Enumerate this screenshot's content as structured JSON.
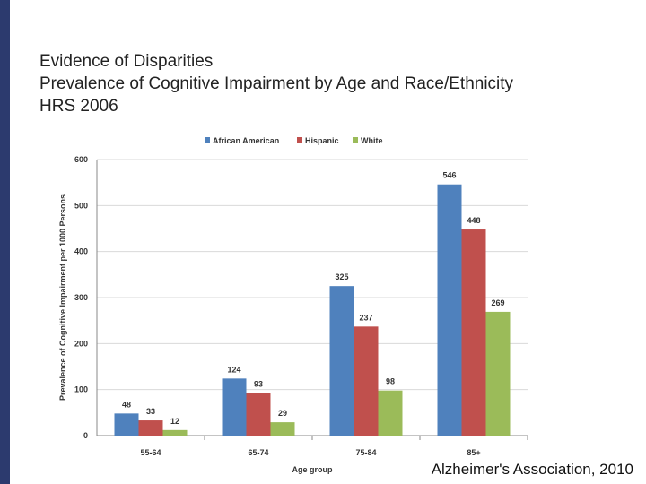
{
  "slide": {
    "title_line1": "Evidence of Disparities",
    "title_line2": "Prevalence of Cognitive Impairment by Age and Race/Ethnicity",
    "title_line3": "HRS 2006",
    "source": "Alzheimer's Association, 2010"
  },
  "chart_data": {
    "type": "bar",
    "xlabel": "Age group",
    "ylabel": "Prevalence of Cognitive Impairment per 1000 Persons",
    "ylim": [
      0,
      600
    ],
    "yticks": [
      0,
      100,
      200,
      300,
      400,
      500,
      600
    ],
    "ytick_labels": [
      "0",
      "100",
      "200",
      "300",
      "400",
      "500",
      "600"
    ],
    "legend_position": "top",
    "categories": [
      "55-64",
      "65-74",
      "75-84",
      "85+"
    ],
    "series": [
      {
        "name": "African American",
        "color": "#4f81bd",
        "values": [
          48,
          124,
          325,
          546
        ]
      },
      {
        "name": "Hispanic",
        "color": "#c0504d",
        "values": [
          33,
          93,
          237,
          448
        ]
      },
      {
        "name": "White",
        "color": "#9bbb59",
        "values": [
          12,
          29,
          98,
          269
        ]
      }
    ]
  }
}
